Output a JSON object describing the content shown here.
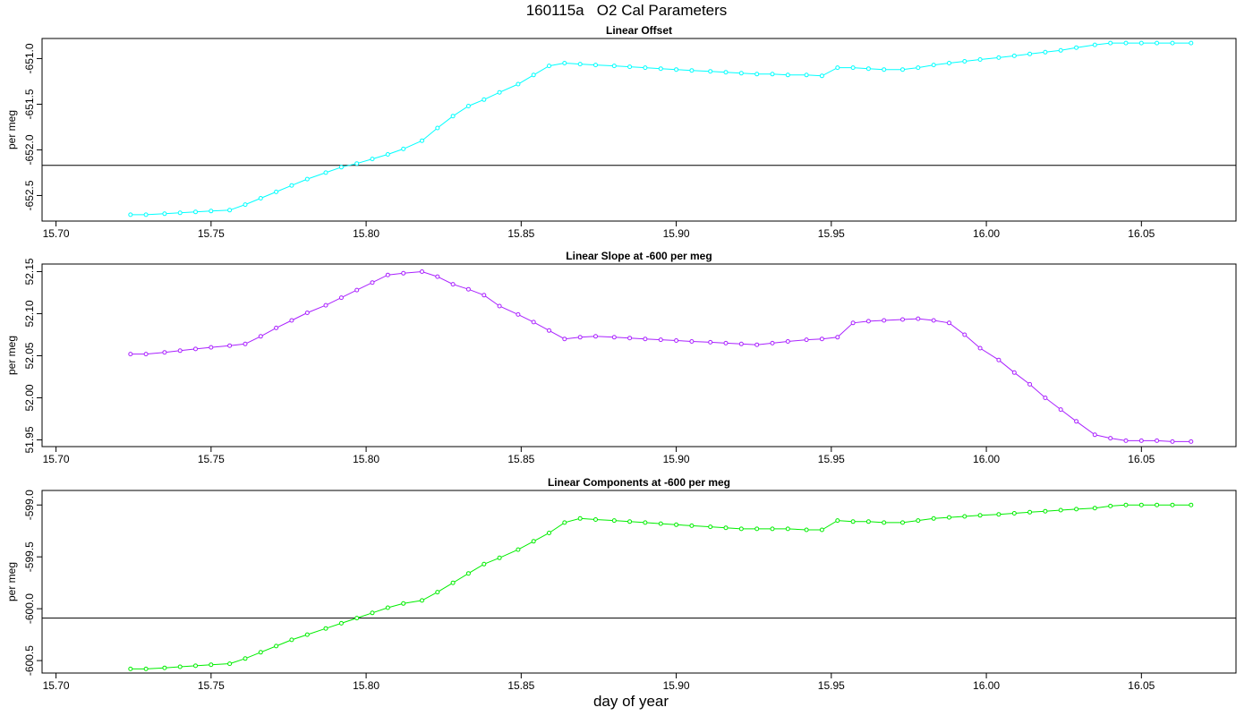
{
  "title": "160115a   O2 Cal Parameters",
  "xlabel": "day of year",
  "chart_data": [
    {
      "type": "line",
      "title": "Linear Offset",
      "ylabel": "per meg",
      "color": "#00ffff",
      "xlim": [
        15.6955,
        16.0805
      ],
      "ylim": [
        -652.78,
        -650.78
      ],
      "xticks": [
        "15.70",
        "15.75",
        "15.80",
        "15.85",
        "15.90",
        "15.95",
        "16.00",
        "16.05"
      ],
      "yticks": [
        "-652.5",
        "-652.0",
        "-651.5",
        "-651.0"
      ],
      "hline": -652.17,
      "x": [
        15.724,
        15.729,
        15.735,
        15.74,
        15.745,
        15.75,
        15.756,
        15.761,
        15.766,
        15.771,
        15.776,
        15.781,
        15.787,
        15.792,
        15.797,
        15.802,
        15.807,
        15.812,
        15.818,
        15.823,
        15.828,
        15.833,
        15.838,
        15.843,
        15.849,
        15.854,
        15.859,
        15.864,
        15.869,
        15.874,
        15.88,
        15.885,
        15.89,
        15.895,
        15.9,
        15.905,
        15.911,
        15.916,
        15.921,
        15.926,
        15.931,
        15.936,
        15.942,
        15.947,
        15.952,
        15.957,
        15.962,
        15.967,
        15.973,
        15.978,
        15.983,
        15.988,
        15.993,
        15.998,
        16.004,
        16.009,
        16.014,
        16.019,
        16.024,
        16.029,
        16.035,
        16.04,
        16.045,
        16.05,
        16.055,
        16.06,
        16.066
      ],
      "y": [
        -652.71,
        -652.71,
        -652.7,
        -652.69,
        -652.68,
        -652.67,
        -652.66,
        -652.6,
        -652.53,
        -652.46,
        -652.39,
        -652.32,
        -652.25,
        -652.19,
        -652.15,
        -652.1,
        -652.05,
        -651.99,
        -651.9,
        -651.76,
        -651.63,
        -651.52,
        -651.45,
        -651.37,
        -651.28,
        -651.18,
        -651.08,
        -651.05,
        -651.06,
        -651.07,
        -651.08,
        -651.09,
        -651.1,
        -651.11,
        -651.12,
        -651.13,
        -651.14,
        -651.15,
        -651.16,
        -651.17,
        -651.17,
        -651.18,
        -651.18,
        -651.19,
        -651.1,
        -651.1,
        -651.11,
        -651.12,
        -651.12,
        -651.1,
        -651.07,
        -651.05,
        -651.03,
        -651.01,
        -650.99,
        -650.97,
        -650.95,
        -650.93,
        -650.91,
        -650.88,
        -650.85,
        -650.83,
        -650.83,
        -650.83,
        -650.83,
        -650.83,
        -650.83
      ]
    },
    {
      "type": "line",
      "title": "Linear Slope at -600 per meg",
      "ylabel": "per meg",
      "color": "#aa22ff",
      "xlim": [
        15.6955,
        16.0805
      ],
      "ylim": [
        51.942,
        52.159
      ],
      "xticks": [
        "15.70",
        "15.75",
        "15.80",
        "15.85",
        "15.90",
        "15.95",
        "16.00",
        "16.05"
      ],
      "yticks": [
        "51.95",
        "52.00",
        "52.05",
        "52.10",
        "52.15"
      ],
      "hline": null,
      "x": [
        15.724,
        15.729,
        15.735,
        15.74,
        15.745,
        15.75,
        15.756,
        15.761,
        15.766,
        15.771,
        15.776,
        15.781,
        15.787,
        15.792,
        15.797,
        15.802,
        15.807,
        15.812,
        15.818,
        15.823,
        15.828,
        15.833,
        15.838,
        15.843,
        15.849,
        15.854,
        15.859,
        15.864,
        15.869,
        15.874,
        15.88,
        15.885,
        15.89,
        15.895,
        15.9,
        15.905,
        15.911,
        15.916,
        15.921,
        15.926,
        15.931,
        15.936,
        15.942,
        15.947,
        15.952,
        15.957,
        15.962,
        15.967,
        15.973,
        15.978,
        15.983,
        15.988,
        15.993,
        15.998,
        16.004,
        16.009,
        16.014,
        16.019,
        16.024,
        16.029,
        16.035,
        16.04,
        16.045,
        16.05,
        16.055,
        16.06,
        16.066
      ],
      "y": [
        52.052,
        52.052,
        52.054,
        52.056,
        52.058,
        52.06,
        52.062,
        52.064,
        52.073,
        52.083,
        52.092,
        52.101,
        52.11,
        52.119,
        52.128,
        52.137,
        52.146,
        52.148,
        52.15,
        52.144,
        52.135,
        52.129,
        52.122,
        52.109,
        52.099,
        52.09,
        52.08,
        52.07,
        52.072,
        52.073,
        52.072,
        52.071,
        52.07,
        52.069,
        52.068,
        52.067,
        52.066,
        52.065,
        52.064,
        52.063,
        52.065,
        52.067,
        52.069,
        52.07,
        52.072,
        52.089,
        52.091,
        52.092,
        52.093,
        52.094,
        52.092,
        52.089,
        52.075,
        52.059,
        52.045,
        52.03,
        52.016,
        52.0,
        51.986,
        51.972,
        51.956,
        51.952,
        51.949,
        51.949,
        51.949,
        51.948,
        51.948
      ]
    },
    {
      "type": "line",
      "title": "Linear Components at -600 per meg",
      "ylabel": "per meg",
      "color": "#00ee00",
      "xlim": [
        15.6955,
        16.0805
      ],
      "ylim": [
        -600.62,
        -598.86
      ],
      "xticks": [
        "15.70",
        "15.75",
        "15.80",
        "15.85",
        "15.90",
        "15.95",
        "16.00",
        "16.05"
      ],
      "yticks": [
        "-600.5",
        "-600.0",
        "-599.5",
        "-599.0"
      ],
      "hline": -600.09,
      "x": [
        15.724,
        15.729,
        15.735,
        15.74,
        15.745,
        15.75,
        15.756,
        15.761,
        15.766,
        15.771,
        15.776,
        15.781,
        15.787,
        15.792,
        15.797,
        15.802,
        15.807,
        15.812,
        15.818,
        15.823,
        15.828,
        15.833,
        15.838,
        15.843,
        15.849,
        15.854,
        15.859,
        15.864,
        15.869,
        15.874,
        15.88,
        15.885,
        15.89,
        15.895,
        15.9,
        15.905,
        15.911,
        15.916,
        15.921,
        15.926,
        15.931,
        15.936,
        15.942,
        15.947,
        15.952,
        15.957,
        15.962,
        15.967,
        15.973,
        15.978,
        15.983,
        15.988,
        15.993,
        15.998,
        16.004,
        16.009,
        16.014,
        16.019,
        16.024,
        16.029,
        16.035,
        16.04,
        16.045,
        16.05,
        16.055,
        16.06,
        16.066
      ],
      "y": [
        -600.58,
        -600.58,
        -600.57,
        -600.56,
        -600.55,
        -600.54,
        -600.53,
        -600.48,
        -600.42,
        -600.36,
        -600.3,
        -600.25,
        -600.19,
        -600.14,
        -600.09,
        -600.04,
        -599.99,
        -599.95,
        -599.92,
        -599.84,
        -599.75,
        -599.66,
        -599.57,
        -599.51,
        -599.43,
        -599.35,
        -599.27,
        -599.17,
        -599.13,
        -599.14,
        -599.15,
        -599.16,
        -599.17,
        -599.18,
        -599.19,
        -599.2,
        -599.21,
        -599.22,
        -599.23,
        -599.23,
        -599.23,
        -599.23,
        -599.24,
        -599.24,
        -599.15,
        -599.16,
        -599.16,
        -599.17,
        -599.17,
        -599.15,
        -599.13,
        -599.12,
        -599.11,
        -599.1,
        -599.09,
        -599.08,
        -599.07,
        -599.06,
        -599.05,
        -599.04,
        -599.03,
        -599.01,
        -599.0,
        -599.0,
        -599.0,
        -599.0,
        -599.0
      ]
    }
  ]
}
